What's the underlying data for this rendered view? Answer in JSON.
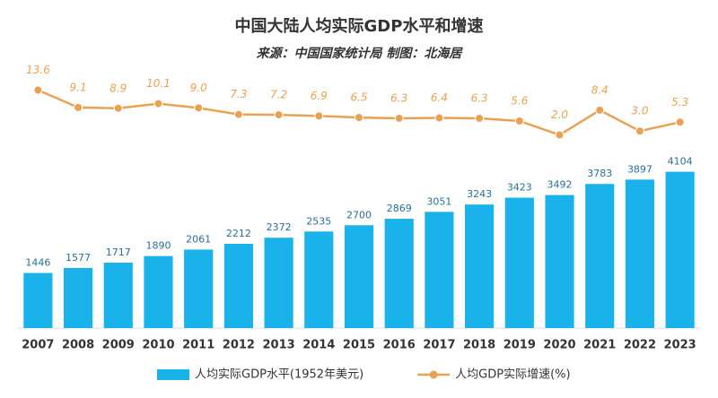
{
  "chart_data": {
    "type": "bar_line",
    "title": "中国大陆人均实际GDP水平和增速",
    "subtitle": "来源：中国国家统计局 制图：北海居",
    "categories": [
      "2007",
      "2008",
      "2009",
      "2010",
      "2011",
      "2012",
      "2013",
      "2014",
      "2015",
      "2016",
      "2017",
      "2018",
      "2019",
      "2020",
      "2021",
      "2022",
      "2023"
    ],
    "series": [
      {
        "name": "人均实际GDP水平(1952年美元)",
        "type": "bar",
        "color": "#1ab2ea",
        "values": [
          1446,
          1577,
          1717,
          1890,
          2061,
          2212,
          2372,
          2535,
          2700,
          2869,
          3051,
          3243,
          3423,
          3492,
          3783,
          3897,
          4104
        ]
      },
      {
        "name": "人均GDP实际增速(%)",
        "type": "line",
        "axis": "y2",
        "color": "#e8a253",
        "values": [
          13.6,
          9.1,
          8.9,
          10.1,
          9.0,
          7.3,
          7.2,
          6.9,
          6.5,
          6.3,
          6.4,
          6.3,
          5.6,
          2.0,
          8.4,
          3.0,
          5.3
        ],
        "value_labels": [
          "13.6",
          "9.1",
          "8.9",
          "10.1",
          "9.0",
          "7.3",
          "7.2",
          "6.9",
          "6.5",
          "6.3",
          "6.4",
          "6.3",
          "5.6",
          "2.0",
          "8.4",
          "3.0",
          "5.3"
        ]
      }
    ],
    "ylim": [
      0,
      7200
    ],
    "y2lim": [
      -48,
      23
    ],
    "legend": "bottom"
  }
}
